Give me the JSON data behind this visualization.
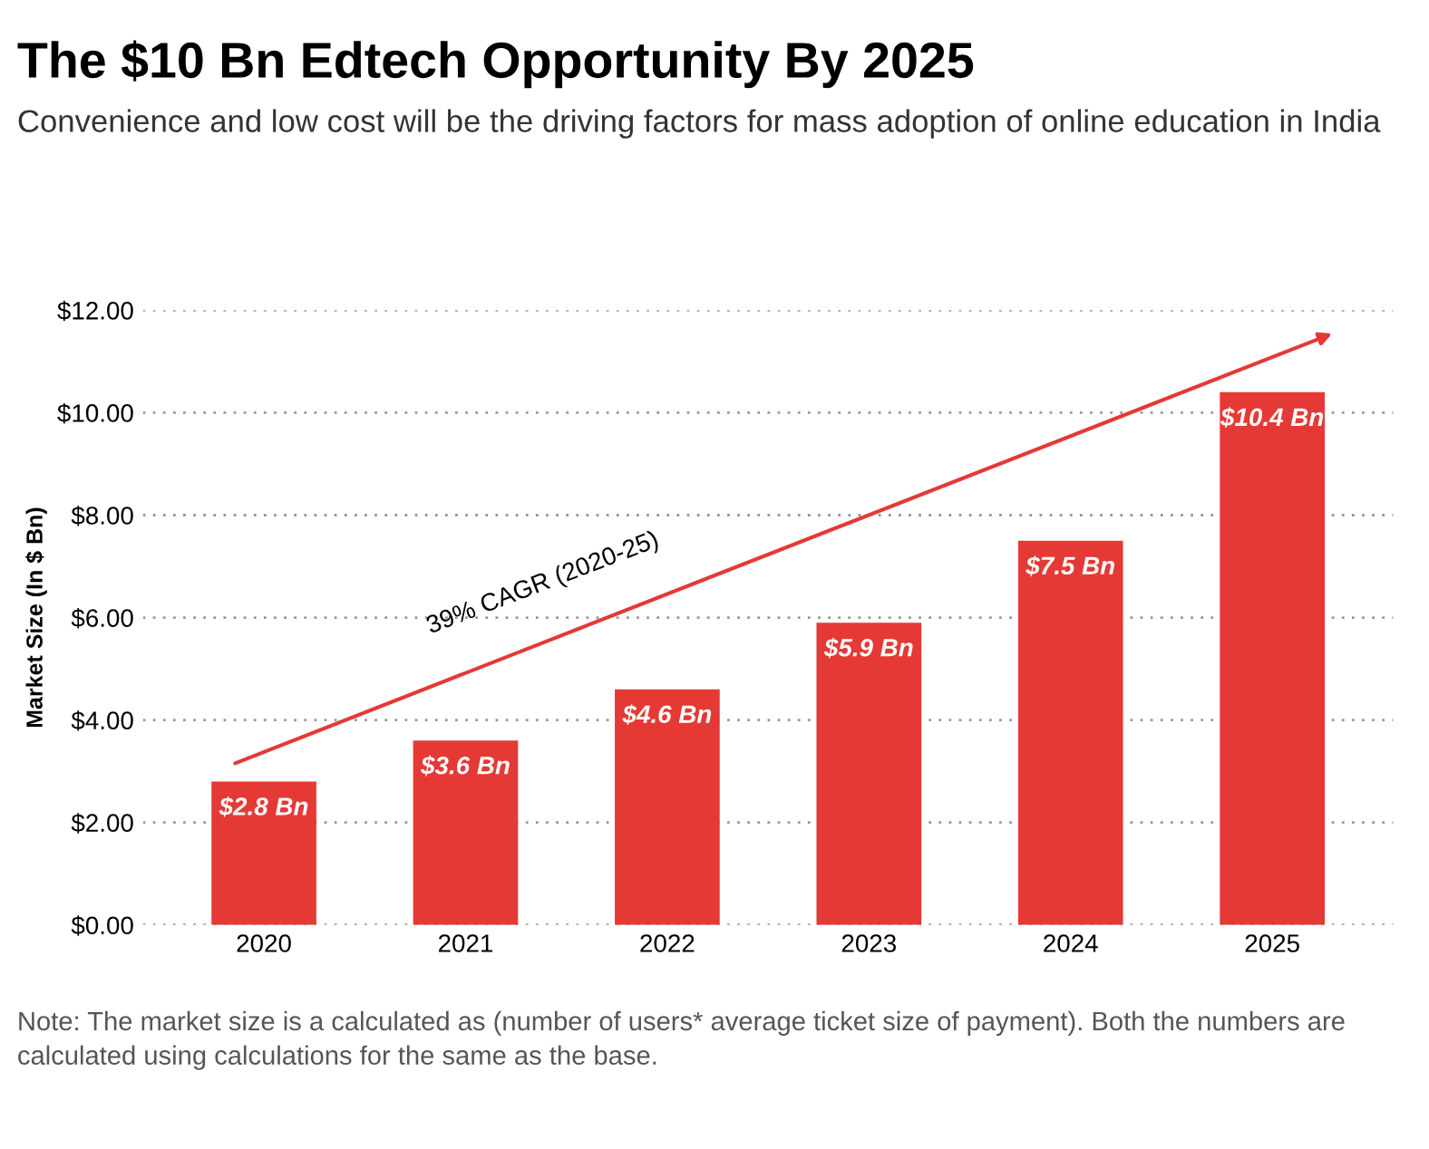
{
  "chart_data": {
    "type": "bar",
    "title": "The $10 Bn Edtech Opportunity By 2025",
    "subtitle": "Convenience and low cost will be the driving factors for mass adoption of online education in India",
    "ylabel": "Market Size (In $ Bn)",
    "categories": [
      "2020",
      "2021",
      "2022",
      "2023",
      "2024",
      "2025"
    ],
    "values": [
      2.8,
      3.6,
      4.6,
      5.9,
      7.5,
      10.4
    ],
    "value_labels": [
      "$2.8 Bn",
      "$3.6 Bn",
      "$4.6 Bn",
      "$5.9 Bn",
      "$7.5 Bn",
      "$10.4 Bn"
    ],
    "color": "#e53935",
    "ylim": [
      0,
      12
    ],
    "yticks": [
      {
        "value": 0,
        "label": "$0.00"
      },
      {
        "value": 2,
        "label": "$2.00"
      },
      {
        "value": 4,
        "label": "$4.00"
      },
      {
        "value": 6,
        "label": "$6.00"
      },
      {
        "value": 8,
        "label": "$8.00"
      },
      {
        "value": 10,
        "label": "$10.00"
      },
      {
        "value": 12,
        "label": "$12.00"
      }
    ],
    "grid": "y",
    "annotations": [
      "39% CAGR (2020-25)",
      "Note: The market size is a calculated as (number of users* average ticket size of payment). Both the numbers are calculated using calculations for the same as the base."
    ]
  }
}
